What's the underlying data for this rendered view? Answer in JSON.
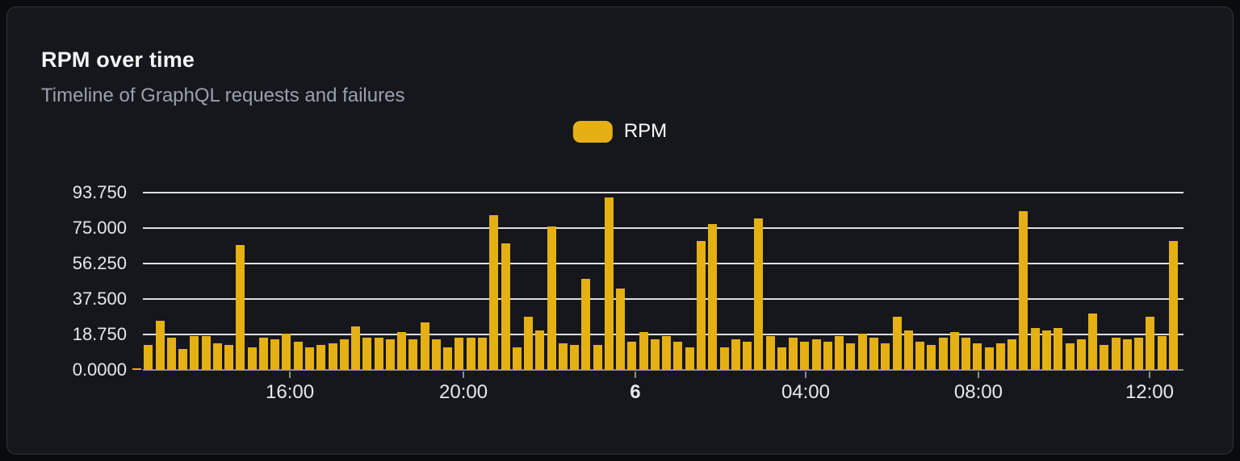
{
  "header": {
    "title": "RPM over time",
    "subtitle": "Timeline of GraphQL requests and failures"
  },
  "legend": {
    "label": "RPM",
    "swatch_color": "#e5b013"
  },
  "colors": {
    "outer_background": "#0a0b0f",
    "card_background": "#15171d",
    "card_border": "#2f333a",
    "bar": "#e5b013",
    "gridline": "#dde1e6",
    "axis_line": "#878d96",
    "axis_text": "#e6e8eb",
    "title_text": "#f4f5f6",
    "subtitle_text": "#9aa1ab"
  },
  "chart_data": {
    "type": "bar",
    "title": "RPM over time",
    "subtitle": "Timeline of GraphQL requests and failures",
    "xlabel": "",
    "ylabel": "",
    "ylim": [
      0,
      93.75
    ],
    "grid": true,
    "legend_position": "top-center",
    "bar_color": "#e5b013",
    "y_ticks": [
      "0.0000",
      "18.750",
      "37.500",
      "56.250",
      "75.000",
      "93.750"
    ],
    "x_ticks": [
      {
        "label": "16:00",
        "pos": 0.1505,
        "bold": false
      },
      {
        "label": "20:00",
        "pos": 0.3164,
        "bold": false
      },
      {
        "label": "6",
        "pos": 0.4807,
        "bold": true
      },
      {
        "label": "04:00",
        "pos": 0.6435,
        "bold": false
      },
      {
        "label": "08:00",
        "pos": 0.8086,
        "bold": false
      },
      {
        "label": "12:00",
        "pos": 0.9722,
        "bold": false
      }
    ],
    "series": [
      {
        "name": "RPM",
        "values": [
          1,
          13,
          26,
          17,
          11,
          18,
          18,
          14,
          13,
          66,
          12,
          17,
          16,
          19,
          15,
          12,
          13,
          14,
          16,
          23,
          17,
          17,
          16,
          20,
          16,
          25,
          16,
          12,
          17,
          17,
          17,
          82,
          67,
          12,
          28,
          21,
          76,
          14,
          13,
          48,
          13,
          91,
          43,
          15,
          20,
          16,
          18,
          15,
          12,
          68,
          77,
          12,
          16,
          15,
          80,
          18,
          12,
          17,
          15,
          16,
          15,
          18,
          14,
          19,
          17,
          14,
          28,
          21,
          15,
          13,
          17,
          20,
          17,
          14,
          12,
          14,
          16,
          84,
          22,
          21,
          22,
          14,
          16,
          30,
          13,
          17,
          16,
          17,
          28,
          18,
          68
        ]
      }
    ]
  }
}
